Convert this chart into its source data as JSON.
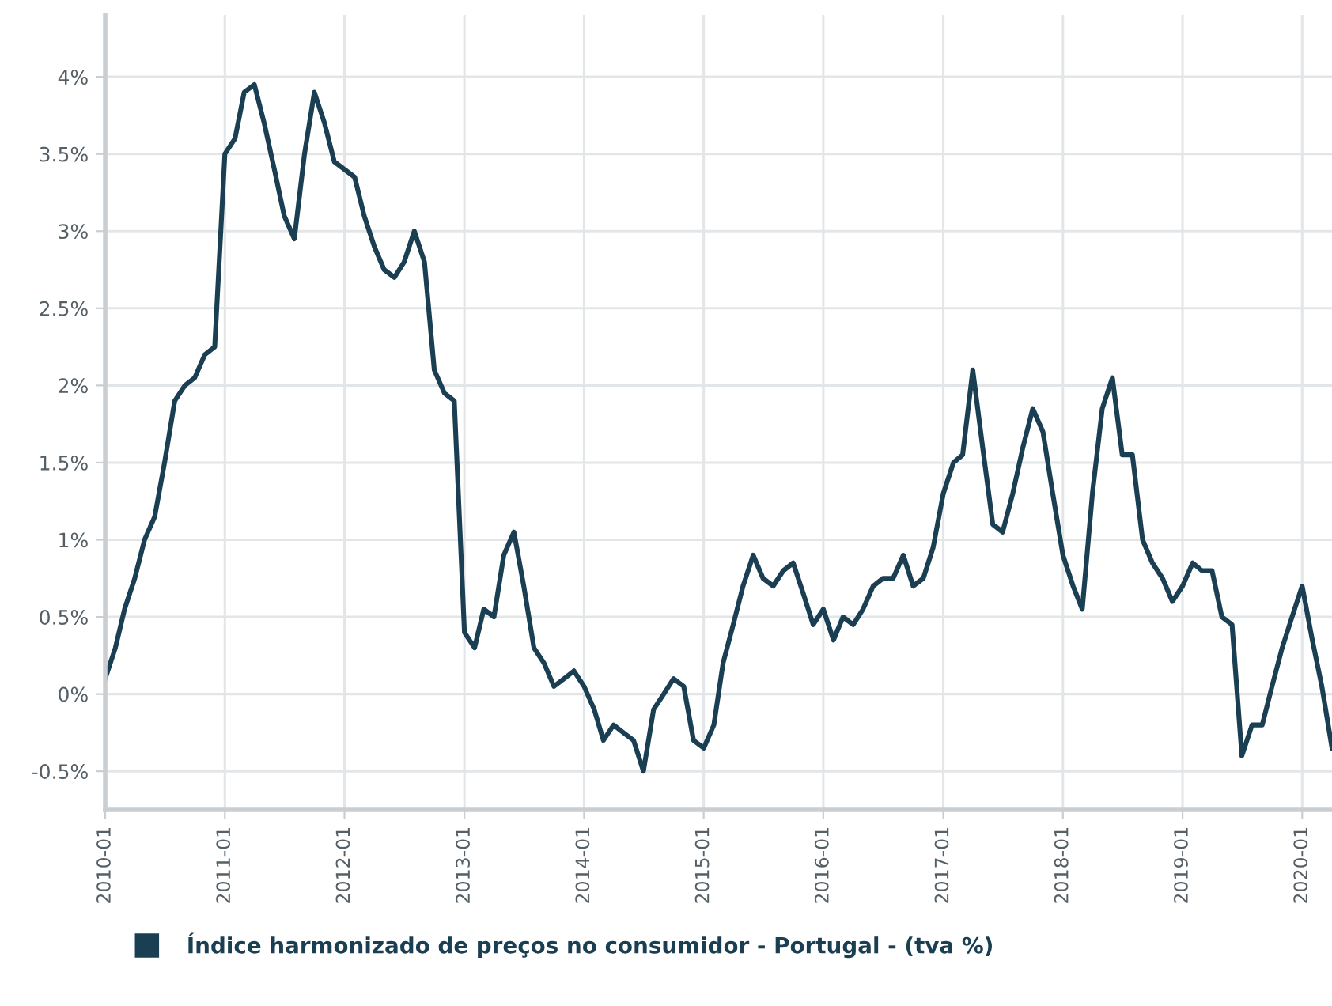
{
  "chart_data": {
    "type": "line",
    "x": [
      "2010-01",
      "2010-02",
      "2010-03",
      "2010-04",
      "2010-05",
      "2010-06",
      "2010-07",
      "2010-08",
      "2010-09",
      "2010-10",
      "2010-11",
      "2010-12",
      "2011-01",
      "2011-02",
      "2011-03",
      "2011-04",
      "2011-05",
      "2011-06",
      "2011-07",
      "2011-08",
      "2011-09",
      "2011-10",
      "2011-11",
      "2011-12",
      "2012-01",
      "2012-02",
      "2012-03",
      "2012-04",
      "2012-05",
      "2012-06",
      "2012-07",
      "2012-08",
      "2012-09",
      "2012-10",
      "2012-11",
      "2012-12",
      "2013-01",
      "2013-02",
      "2013-03",
      "2013-04",
      "2013-05",
      "2013-06",
      "2013-07",
      "2013-08",
      "2013-09",
      "2013-10",
      "2013-11",
      "2013-12",
      "2014-01",
      "2014-02",
      "2014-03",
      "2014-04",
      "2014-05",
      "2014-06",
      "2014-07",
      "2014-08",
      "2014-09",
      "2014-10",
      "2014-11",
      "2014-12",
      "2015-01",
      "2015-02",
      "2015-03",
      "2015-04",
      "2015-05",
      "2015-06",
      "2015-07",
      "2015-08",
      "2015-09",
      "2015-10",
      "2015-11",
      "2015-12",
      "2016-01",
      "2016-02",
      "2016-03",
      "2016-04",
      "2016-05",
      "2016-06",
      "2016-07",
      "2016-08",
      "2016-09",
      "2016-10",
      "2016-11",
      "2016-12",
      "2017-01",
      "2017-02",
      "2017-03",
      "2017-04",
      "2017-05",
      "2017-06",
      "2017-07",
      "2017-08",
      "2017-09",
      "2017-10",
      "2017-11",
      "2017-12",
      "2018-01",
      "2018-02",
      "2018-03",
      "2018-04",
      "2018-05",
      "2018-06",
      "2018-07",
      "2018-08",
      "2018-09",
      "2018-10",
      "2018-11",
      "2018-12",
      "2019-01",
      "2019-02",
      "2019-03",
      "2019-04",
      "2019-05",
      "2019-06",
      "2019-07",
      "2019-08",
      "2019-09",
      "2019-10",
      "2019-11",
      "2019-12",
      "2020-01",
      "2020-02",
      "2020-03",
      "2020-04"
    ],
    "series": [
      {
        "name": "Índice harmonizado de preços no consumidor - Portugal - (tva %)",
        "color": "#1b3f52",
        "values": [
          0.1,
          0.3,
          0.55,
          0.75,
          1.0,
          1.15,
          1.5,
          1.9,
          2.0,
          2.05,
          2.2,
          2.25,
          3.5,
          3.6,
          3.9,
          3.95,
          3.7,
          3.4,
          3.1,
          2.95,
          3.5,
          3.9,
          3.7,
          3.45,
          3.4,
          3.35,
          3.1,
          2.9,
          2.75,
          2.7,
          2.8,
          3.0,
          2.8,
          2.1,
          1.95,
          1.9,
          0.4,
          0.3,
          0.55,
          0.5,
          0.9,
          1.05,
          0.7,
          0.3,
          0.2,
          0.05,
          0.1,
          0.15,
          0.05,
          -0.1,
          -0.3,
          -0.2,
          -0.25,
          -0.3,
          -0.5,
          -0.1,
          0.0,
          0.1,
          0.05,
          -0.3,
          -0.35,
          -0.2,
          0.2,
          0.45,
          0.7,
          0.9,
          0.75,
          0.7,
          0.8,
          0.85,
          0.65,
          0.45,
          0.55,
          0.35,
          0.5,
          0.45,
          0.55,
          0.7,
          0.75,
          0.75,
          0.9,
          0.7,
          0.75,
          0.95,
          1.3,
          1.5,
          1.55,
          2.1,
          1.6,
          1.1,
          1.05,
          1.3,
          1.6,
          1.85,
          1.7,
          1.3,
          0.9,
          0.7,
          0.55,
          1.3,
          1.85,
          2.05,
          1.55,
          1.55,
          1.0,
          0.85,
          0.75,
          0.6,
          0.7,
          0.85,
          0.8,
          0.8,
          0.5,
          0.45,
          -0.4,
          -0.2,
          -0.2,
          0.05,
          0.3,
          0.5,
          0.7,
          0.35,
          0.05,
          -0.35
        ]
      }
    ],
    "xlim": [
      "2010-01",
      "2020-04"
    ],
    "xticks": [
      "2010-01",
      "2011-01",
      "2012-01",
      "2013-01",
      "2014-01",
      "2015-01",
      "2016-01",
      "2017-01",
      "2018-01",
      "2019-01",
      "2020-01"
    ],
    "ylim": [
      -0.75,
      4.4
    ],
    "yticks": [
      {
        "value": -0.5,
        "label": "-0.5%"
      },
      {
        "value": 0,
        "label": "0%"
      },
      {
        "value": 0.5,
        "label": "0.5%"
      },
      {
        "value": 1,
        "label": "1%"
      },
      {
        "value": 1.5,
        "label": "1.5%"
      },
      {
        "value": 2,
        "label": "2%"
      },
      {
        "value": 2.5,
        "label": "2.5%"
      },
      {
        "value": 3,
        "label": "3%"
      },
      {
        "value": 3.5,
        "label": "3.5%"
      },
      {
        "value": 4,
        "label": "4%"
      }
    ],
    "grid": true,
    "legend": "bottom left",
    "marker": "none",
    "line_style": "solid"
  }
}
